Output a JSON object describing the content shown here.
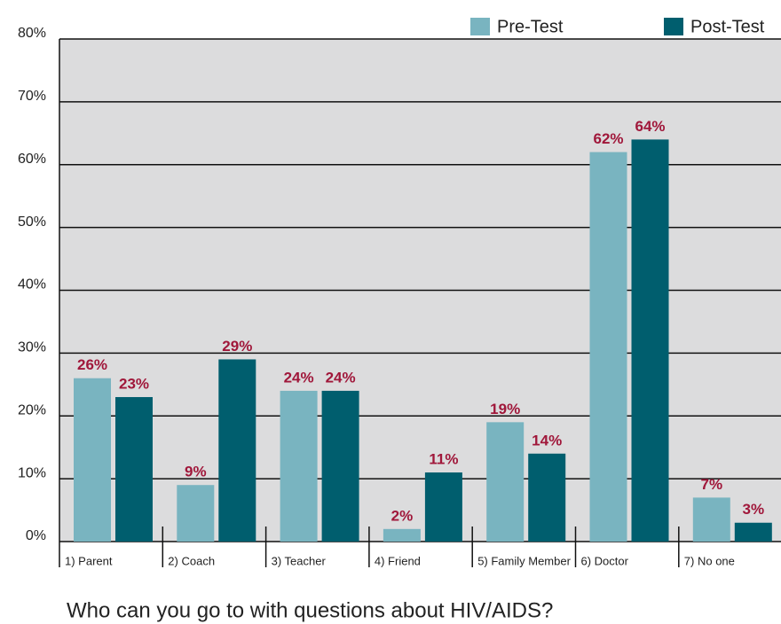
{
  "chart_data": {
    "type": "bar",
    "title": "Who can you go to with questions about HIV/AIDS?",
    "categories": [
      "1) Parent",
      "2) Coach",
      "3) Teacher",
      "4) Friend",
      "5) Family Member",
      "6) Doctor",
      "7) No one"
    ],
    "series": [
      {
        "name": "Pre-Test",
        "color": "#79b4c0",
        "values": [
          26,
          9,
          24,
          2,
          19,
          62,
          7
        ],
        "value_labels": [
          "26%",
          "9%",
          "24%",
          "2%",
          "19%",
          "62%",
          "7%"
        ]
      },
      {
        "name": "Post-Test",
        "color": "#005e6e",
        "values": [
          23,
          29,
          24,
          11,
          14,
          64,
          3
        ],
        "value_labels": [
          "23%",
          "29%",
          "24%",
          "11%",
          "14%",
          "64%",
          "3%"
        ]
      }
    ],
    "ylim": [
      0,
      80
    ],
    "yticks": [
      {
        "value": 0,
        "label": "0%"
      },
      {
        "value": 10,
        "label": "10%"
      },
      {
        "value": 20,
        "label": "20%"
      },
      {
        "value": 30,
        "label": "30%"
      },
      {
        "value": 40,
        "label": "40%"
      },
      {
        "value": 50,
        "label": "50%"
      },
      {
        "value": 60,
        "label": "60%"
      },
      {
        "value": 70,
        "label": "70%"
      },
      {
        "value": 80,
        "label": "80%"
      }
    ],
    "grid": true,
    "legend": "top-right"
  }
}
